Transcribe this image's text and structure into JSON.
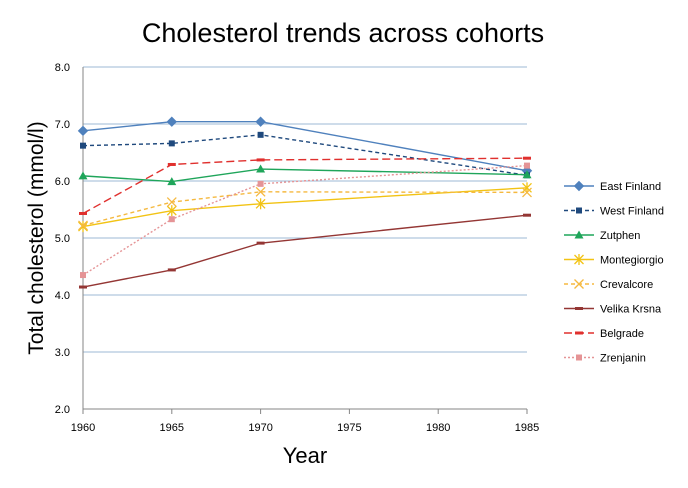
{
  "chart_data": {
    "type": "line",
    "title": "Cholesterol trends across cohorts",
    "xlabel": "Year",
    "ylabel": "Total cholesterol (mmol/l)",
    "xlim": [
      1960,
      1985
    ],
    "ylim": [
      2.0,
      8.0
    ],
    "x_ticks": [
      "1960",
      "1965",
      "1970",
      "1975",
      "1980",
      "1985"
    ],
    "y_ticks": [
      "2.0",
      "3.0",
      "4.0",
      "5.0",
      "6.0",
      "7.0",
      "8.0"
    ],
    "grid": "horizontal",
    "legend_position": "right",
    "series": [
      {
        "name": "East Finland",
        "color": "#4F81BD",
        "dash": "solid",
        "marker": "diamond",
        "points": [
          [
            1960,
            6.88
          ],
          [
            1965,
            7.04
          ],
          [
            1970,
            7.04
          ],
          [
            1985,
            6.18
          ]
        ]
      },
      {
        "name": "West Finland",
        "color": "#1F497D",
        "dash": "dash",
        "marker": "square",
        "points": [
          [
            1960,
            6.62
          ],
          [
            1965,
            6.66
          ],
          [
            1970,
            6.81
          ],
          [
            1985,
            6.1
          ]
        ]
      },
      {
        "name": "Zutphen",
        "color": "#1FA55A",
        "dash": "solid",
        "marker": "triangle",
        "points": [
          [
            1960,
            6.09
          ],
          [
            1965,
            5.99
          ],
          [
            1970,
            6.21
          ],
          [
            1985,
            6.11
          ]
        ]
      },
      {
        "name": "Montegiorgio",
        "color": "#F2C314",
        "dash": "solid",
        "marker": "star",
        "points": [
          [
            1960,
            5.2
          ],
          [
            1965,
            5.48
          ],
          [
            1970,
            5.6
          ],
          [
            1985,
            5.88
          ]
        ]
      },
      {
        "name": "Crevalcore",
        "color": "#F5B940",
        "dash": "dash",
        "marker": "x",
        "points": [
          [
            1960,
            5.22
          ],
          [
            1965,
            5.63
          ],
          [
            1970,
            5.81
          ],
          [
            1985,
            5.8
          ]
        ]
      },
      {
        "name": "Velika Krsna",
        "color": "#943634",
        "dash": "solid",
        "marker": "bar",
        "points": [
          [
            1960,
            4.14
          ],
          [
            1965,
            4.44
          ],
          [
            1970,
            4.91
          ],
          [
            1985,
            5.4
          ]
        ]
      },
      {
        "name": "Belgrade",
        "color": "#E0302E",
        "dash": "longdash",
        "marker": "bar",
        "points": [
          [
            1960,
            5.43
          ],
          [
            1965,
            6.29
          ],
          [
            1970,
            6.37
          ],
          [
            1985,
            6.4
          ]
        ]
      },
      {
        "name": "Zrenjanin",
        "color": "#E59496",
        "dash": "dot",
        "marker": "square",
        "points": [
          [
            1960,
            4.35
          ],
          [
            1965,
            5.33
          ],
          [
            1970,
            5.95
          ],
          [
            1985,
            6.27
          ]
        ]
      }
    ]
  }
}
